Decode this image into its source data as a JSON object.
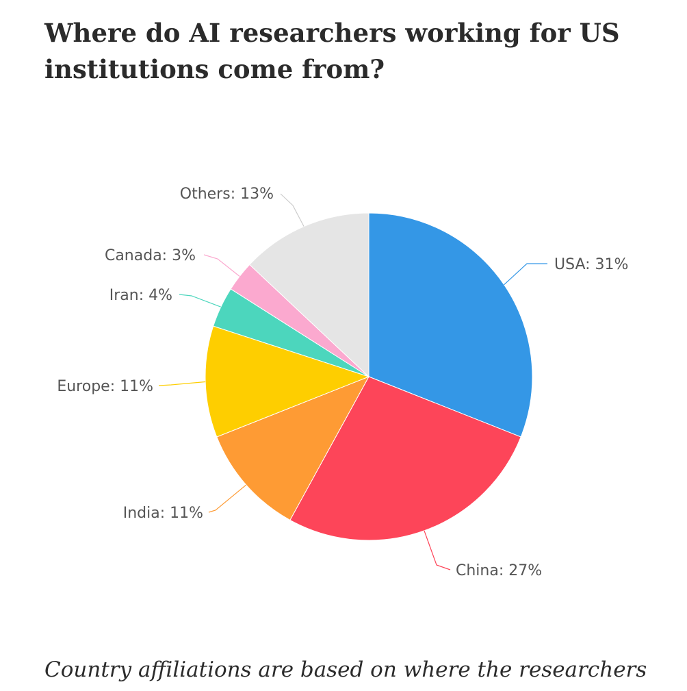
{
  "header": {
    "title": "Where do AI researchers working for US institutions come from?"
  },
  "chart_data": {
    "type": "pie",
    "title": "Where do AI researchers working for US institutions come from?",
    "start": "12 o'clock",
    "direction": "clockwise",
    "legend": "none (labels with leader lines)",
    "slices": [
      {
        "name": "USA",
        "label": "USA: 31%",
        "value": 31,
        "color": "#3497e6"
      },
      {
        "name": "China",
        "label": "China: 27%",
        "value": 27,
        "color": "#fd4559"
      },
      {
        "name": "India",
        "label": "India: 11%",
        "value": 11,
        "color": "#fe9b34"
      },
      {
        "name": "Europe",
        "label": "Europe: 11%",
        "value": 11,
        "color": "#fece00"
      },
      {
        "name": "Iran",
        "label": "Iran: 4%",
        "value": 4,
        "color": "#4cd6bd"
      },
      {
        "name": "Canada",
        "label": "Canada: 3%",
        "value": 3,
        "color": "#fba9cf"
      },
      {
        "name": "Others",
        "label": "Others: 13%",
        "value": 13,
        "color": "#e5e5e5"
      }
    ]
  },
  "footnote": {
    "text": "Country affiliations are based on where the researchers"
  }
}
